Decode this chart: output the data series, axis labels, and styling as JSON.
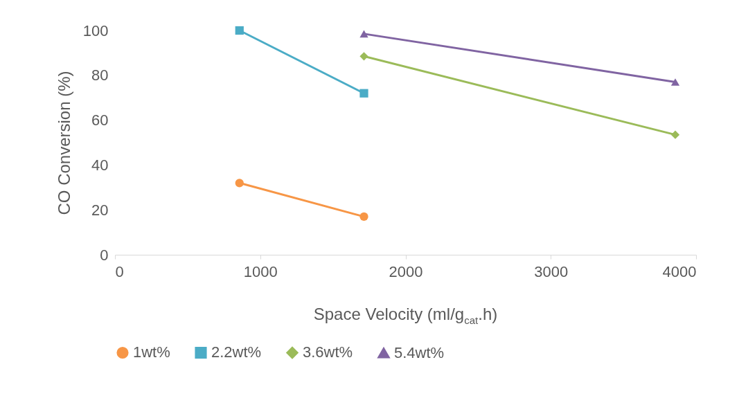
{
  "chart_data": {
    "type": "line",
    "xlabel": "Space Velocity (ml/g$_{cat}$.h)",
    "ylabel": "CO Conversion (%)",
    "xlim": [
      0,
      4000
    ],
    "xticks": [
      0,
      1000,
      2000,
      3000,
      4000
    ],
    "ylim": [
      0,
      100
    ],
    "yticks": [
      0,
      20,
      40,
      60,
      80,
      100
    ],
    "grid": false,
    "legend": "bottom",
    "series": [
      {
        "name": "1wt%",
        "color": "#f79646",
        "marker": "circle",
        "x": [
          857,
          1714
        ],
        "values": [
          32,
          17
        ]
      },
      {
        "name": "2.2wt%",
        "color": "#4bacc6",
        "marker": "square",
        "x": [
          857,
          1714
        ],
        "values": [
          100,
          72
        ]
      },
      {
        "name": "3.6wt%",
        "color": "#9bbb59",
        "marker": "diamond",
        "x": [
          1714,
          3857
        ],
        "values": [
          88.5,
          53.5
        ]
      },
      {
        "name": "5.4wt%",
        "color": "#8064a2",
        "marker": "triangle",
        "x": [
          1714,
          3857
        ],
        "values": [
          98.5,
          77
        ]
      }
    ]
  }
}
